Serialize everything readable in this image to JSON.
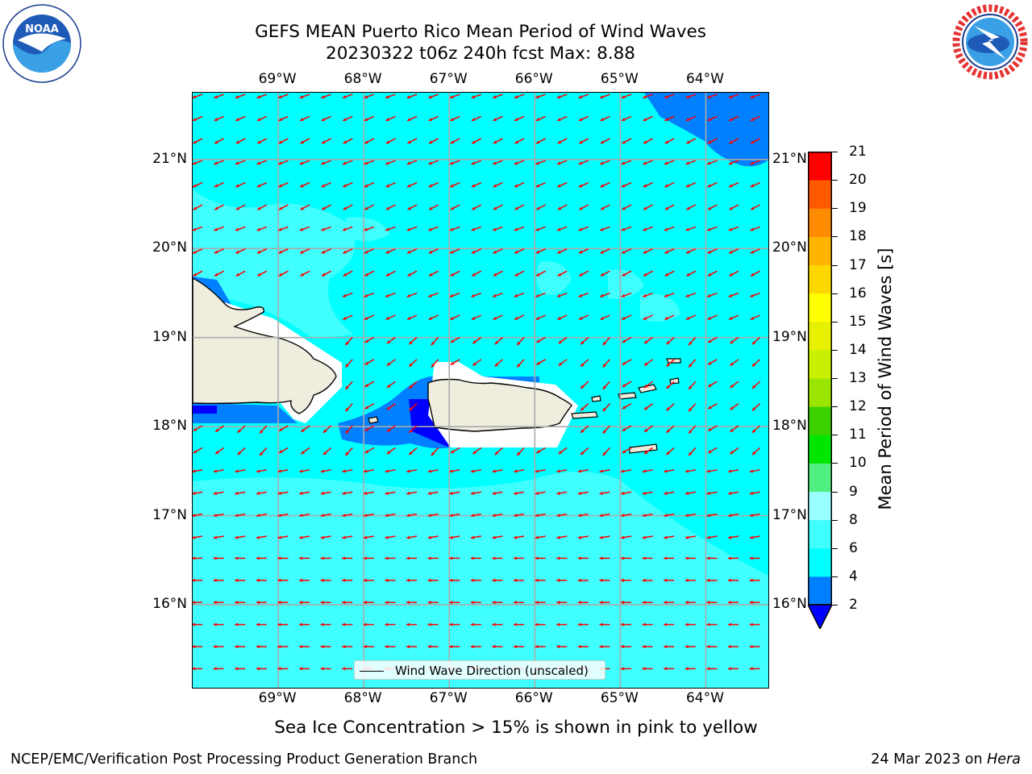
{
  "title": {
    "line1": "GEFS MEAN Puerto Rico Mean Period of Wind Waves",
    "line2": "20230322 t06z 240h fcst   Max: 8.88"
  },
  "logos": {
    "noaa": {
      "name": "noaa-logo",
      "text": "NOAA",
      "ring_text": "NATIONAL OCEANIC AND ATMOSPHERIC ADMINISTRATION · U.S. DEPARTMENT OF COMMERCE"
    },
    "nws": {
      "name": "nws-logo",
      "ring_text": "NATIONAL WEATHER SERVICE"
    }
  },
  "map": {
    "longitude_labels": [
      "69°W",
      "68°W",
      "67°W",
      "66°W",
      "65°W",
      "64°W"
    ],
    "latitude_labels": [
      "21°N",
      "20°N",
      "19°N",
      "18°N",
      "17°N",
      "16°N"
    ],
    "extent_lon": [
      -70.0,
      -63.25
    ],
    "extent_lat": [
      15.05,
      21.75
    ],
    "ocean_color": "#00ffff",
    "land_color": "#efedde",
    "arrow_color": "#ff0000",
    "legend_label": "Wind Wave Direction (unscaled)"
  },
  "colorbar": {
    "label": "Mean Period of Wind Waves [s]",
    "ticks": [
      "2",
      "4",
      "6",
      "8",
      "9",
      "10",
      "11",
      "12",
      "13",
      "14",
      "15",
      "16",
      "17",
      "18",
      "19",
      "20",
      "21"
    ],
    "under_color": "#0000ff",
    "colors": [
      "#0080ff",
      "#00ffff",
      "#40ffff",
      "#99ffff",
      "#50f080",
      "#00e600",
      "#3cd200",
      "#9be600",
      "#c8f000",
      "#e6f000",
      "#ffff00",
      "#ffd700",
      "#ffb400",
      "#ff8c00",
      "#ff5a00",
      "#ff0000"
    ]
  },
  "note": "Sea Ice Concentration > 15% is shown in pink to yellow",
  "footer": {
    "left": "NCEP/EMC/Verification Post Processing Product Generation Branch",
    "right_prefix": "24 Mar 2023 on ",
    "right_machine": "Hera"
  }
}
